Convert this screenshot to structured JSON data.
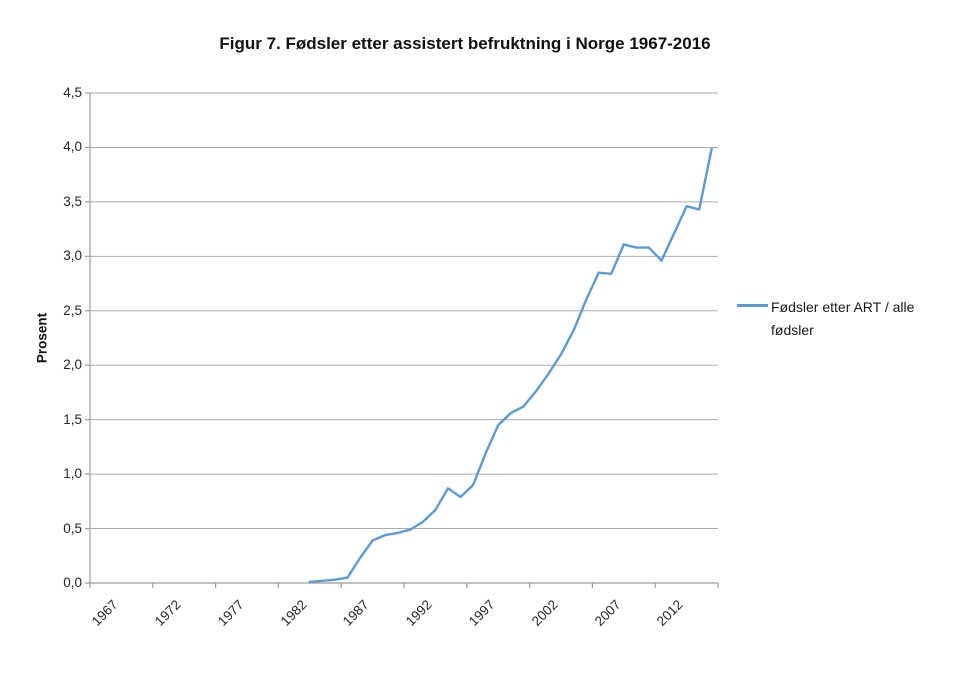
{
  "chart": {
    "title": "Figur 7. Fødsler etter assistert befruktning i Norge 1967-2016",
    "y_axis_title": "Prosent",
    "legend": {
      "label": "Fødsler etter ART / alle fødsler"
    }
  },
  "colors": {
    "series_line": "#5B9BD5",
    "gridline": "#ABABAB",
    "axis": "#9B9B9B",
    "text": "#262626",
    "background": "#FFFFFF"
  },
  "chart_data": {
    "type": "line",
    "title": "Figur 7. Fødsler etter assistert befruktning i Norge 1967-2016",
    "xlabel": "",
    "ylabel": "Prosent",
    "x_axis_range": [
      1967,
      2016
    ],
    "x_tick_labels": [
      "1967",
      "1972",
      "1977",
      "1982",
      "1987",
      "1992",
      "1997",
      "2002",
      "2007",
      "2012"
    ],
    "x_tick_years": [
      1967,
      1972,
      1977,
      1982,
      1987,
      1992,
      1997,
      2002,
      2007,
      2012
    ],
    "ylim": [
      0,
      4.5
    ],
    "y_tick_step": 0.5,
    "y_tick_labels_top_to_bottom": [
      "4,5",
      "4,0",
      "3,5",
      "3,0",
      "2,5",
      "2,0",
      "1,5",
      "1,0",
      "0,5",
      "0,0"
    ],
    "grid": true,
    "legend_position": "right",
    "series": [
      {
        "name": "Fødsler etter ART / alle fødsler",
        "color": "#5B9BD5",
        "x": [
          1984,
          1985,
          1986,
          1987,
          1988,
          1989,
          1990,
          1991,
          1992,
          1993,
          1994,
          1995,
          1996,
          1997,
          1998,
          1999,
          2000,
          2001,
          2002,
          2003,
          2004,
          2005,
          2006,
          2007,
          2008,
          2009,
          2010,
          2011,
          2012,
          2013,
          2014,
          2015,
          2016
        ],
        "values": [
          0.01,
          0.02,
          0.03,
          0.05,
          0.23,
          0.39,
          0.44,
          0.46,
          0.49,
          0.56,
          0.67,
          0.87,
          0.79,
          0.9,
          1.19,
          1.45,
          1.56,
          1.62,
          1.76,
          1.92,
          2.1,
          2.32,
          2.6,
          2.85,
          2.84,
          3.11,
          3.08,
          3.08,
          2.96,
          3.21,
          3.46,
          3.43,
          3.99
        ]
      }
    ]
  }
}
